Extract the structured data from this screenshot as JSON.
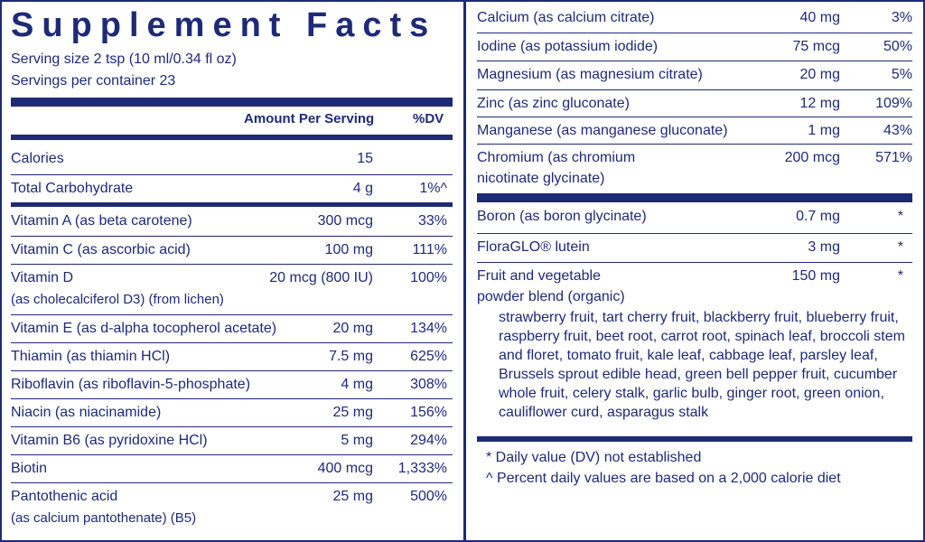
{
  "title": "Supplement Facts",
  "serving_size": "Serving size  2 tsp (10 ml/0.34 fl oz)",
  "servings_per_container": "Servings per container  23",
  "header": {
    "amount": "Amount Per Serving",
    "dv": "%DV"
  },
  "left_rows": [
    {
      "name": "Calories",
      "amount": "15",
      "dv": ""
    },
    {
      "name": "Total Carbohydrate",
      "amount": "4 g",
      "dv": "1%^"
    },
    {
      "name": "Vitamin A (as beta carotene)",
      "amount": "300 mcg",
      "dv": "33%"
    },
    {
      "name": "Vitamin C (as ascorbic acid)",
      "amount": "100 mg",
      "dv": "111%"
    },
    {
      "name": "Vitamin D",
      "name_line2": "(as cholecalciferol D3) (from lichen)",
      "amount": "20 mcg (800 IU)",
      "dv": "100%"
    },
    {
      "name": "Vitamin E (as d-alpha tocopherol acetate)",
      "amount": "20 mg",
      "dv": "134%"
    },
    {
      "name": "Thiamin (as thiamin HCl)",
      "amount": "7.5 mg",
      "dv": "625%"
    },
    {
      "name": "Riboflavin (as riboflavin-5-phosphate)",
      "amount": "4 mg",
      "dv": "308%"
    },
    {
      "name": "Niacin (as niacinamide)",
      "amount": "25 mg",
      "dv": "156%"
    },
    {
      "name": "Vitamin B6 (as pyridoxine HCl)",
      "amount": "5 mg",
      "dv": "294%"
    },
    {
      "name": "Biotin",
      "amount": "400 mcg",
      "dv": "1,333%"
    },
    {
      "name": "Pantothenic acid",
      "name_line2": "(as calcium pantothenate) (B5)",
      "amount": "25 mg",
      "dv": "500%"
    }
  ],
  "right_rows": [
    {
      "name": "Calcium (as calcium citrate)",
      "amount": "40 mg",
      "dv": "3%"
    },
    {
      "name": "Iodine (as potassium iodide)",
      "amount": "75 mcg",
      "dv": "50%"
    },
    {
      "name": "Magnesium (as magnesium citrate)",
      "amount": "20 mg",
      "dv": "5%"
    },
    {
      "name": "Zinc (as zinc gluconate)",
      "amount": "12 mg",
      "dv": "109%"
    },
    {
      "name": "Manganese (as manganese gluconate)",
      "amount": "1 mg",
      "dv": "43%"
    },
    {
      "name": "Chromium (as chromium",
      "name_line2": "nicotinate glycinate)",
      "amount": "200 mcg",
      "dv": "571%"
    },
    {
      "name": "Boron (as boron glycinate)",
      "amount": "0.7 mg",
      "dv": "*"
    },
    {
      "name": "FloraGLO® lutein",
      "amount": "3 mg",
      "dv": "*"
    },
    {
      "name": "Fruit and vegetable",
      "name_line2": "powder blend (organic)",
      "amount": "150 mg",
      "dv": "*"
    }
  ],
  "blend_ingredients": "strawberry fruit, tart cherry fruit, blackberry fruit, blueberry fruit, raspberry fruit, beet root, carrot root, spinach leaf, broccoli stem and floret, tomato fruit, kale leaf, cabbage leaf, parsley leaf, Brussels sprout edible head, green bell pepper fruit, cucumber whole fruit, celery stalk, garlic bulb, ginger root, green onion, cauliflower curd, asparagus stalk",
  "footnotes": [
    "* Daily value (DV) not established",
    "^ Percent daily values are based on a 2,000 calorie diet"
  ],
  "colors": {
    "ink": "#1e2a78",
    "background": "#ffffff"
  }
}
